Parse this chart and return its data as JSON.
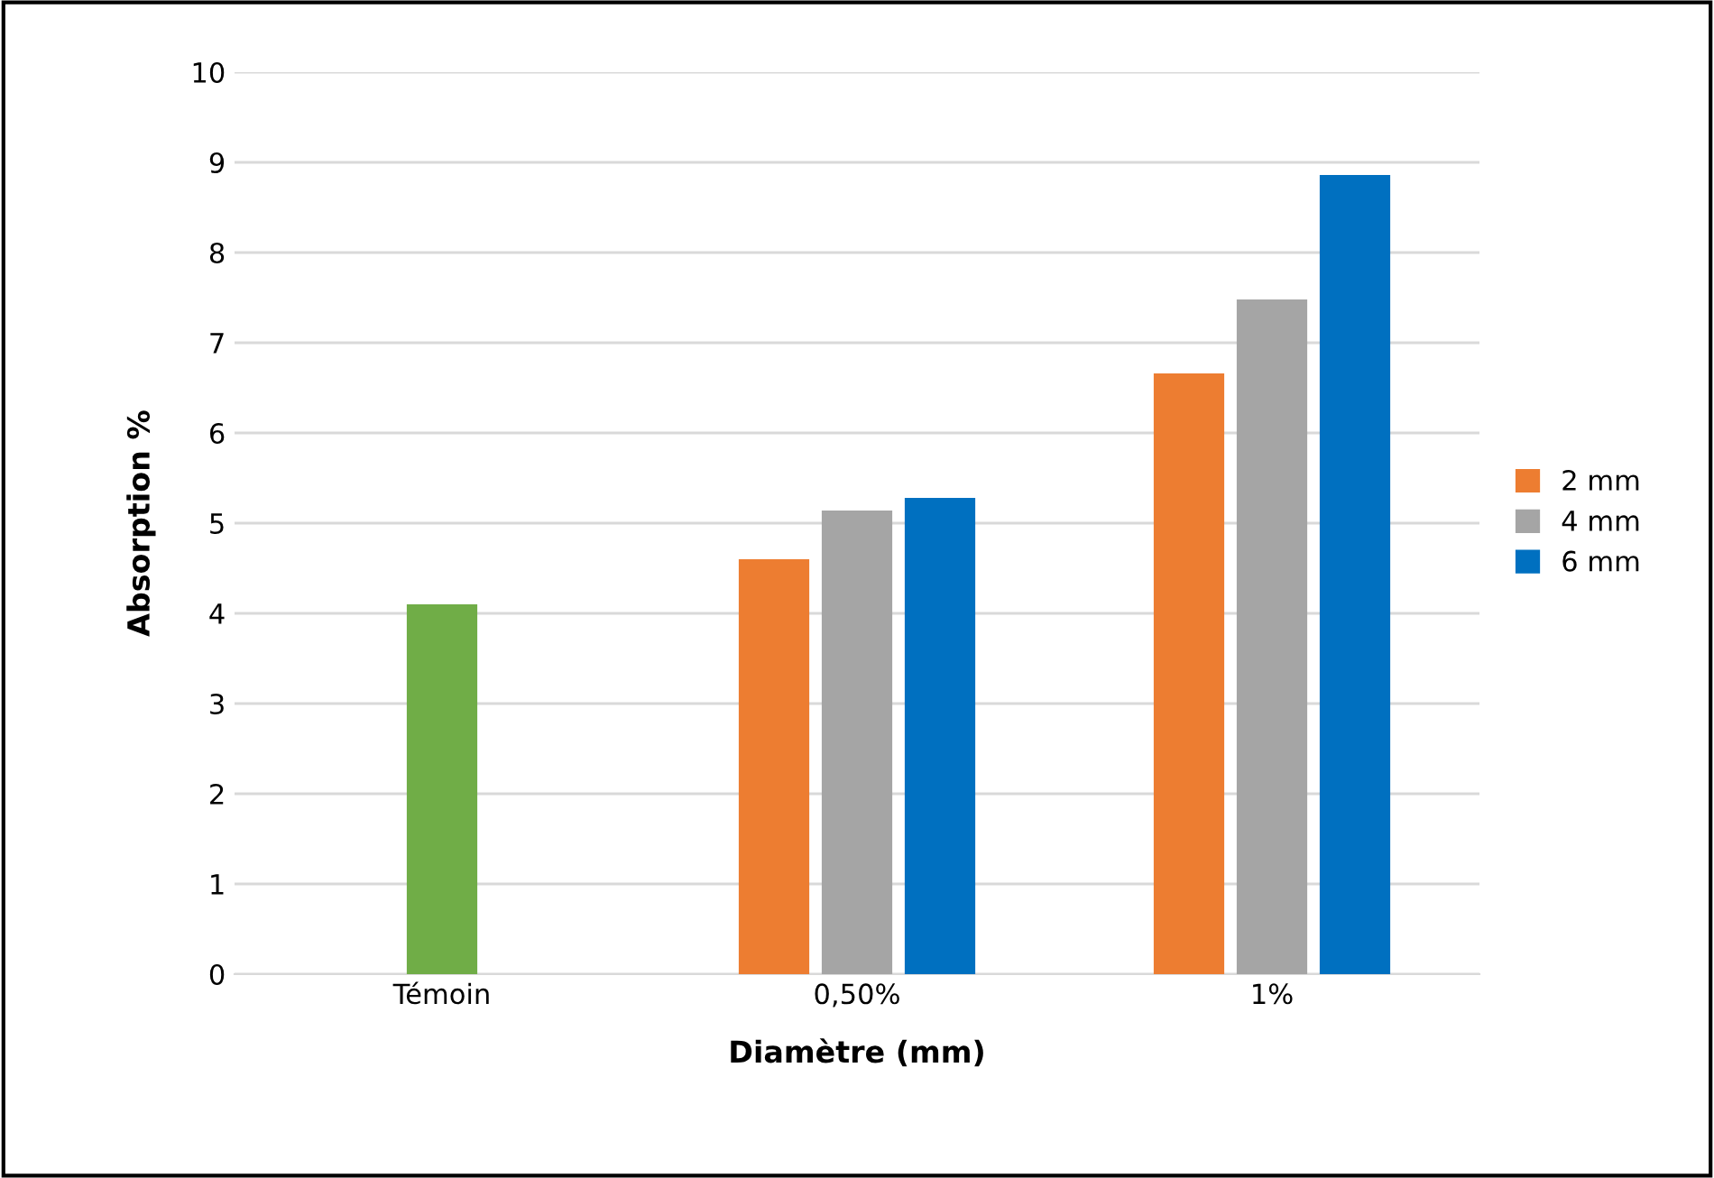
{
  "chart_data": {
    "type": "bar",
    "xlabel": "Diamètre (mm)",
    "ylabel": "Absorption %",
    "categories": [
      "Témoin",
      "0,50%",
      "1%"
    ],
    "series": [
      {
        "name": "2 mm",
        "color": "#ed7d31",
        "values": [
          null,
          4.6,
          6.66
        ]
      },
      {
        "name": "4 mm",
        "color": "#a5a5a5",
        "colors": [
          "#70ad47",
          "#a5a5a5",
          "#a5a5a5"
        ],
        "values": [
          4.1,
          5.14,
          7.48
        ]
      },
      {
        "name": "6 mm",
        "color": "#0070c0",
        "values": [
          null,
          5.28,
          8.86
        ]
      }
    ],
    "ylim": [
      0,
      10
    ],
    "yticks": [
      0,
      1,
      2,
      3,
      4,
      5,
      6,
      7,
      8,
      9,
      10
    ],
    "grid": "y",
    "legend": "right"
  }
}
